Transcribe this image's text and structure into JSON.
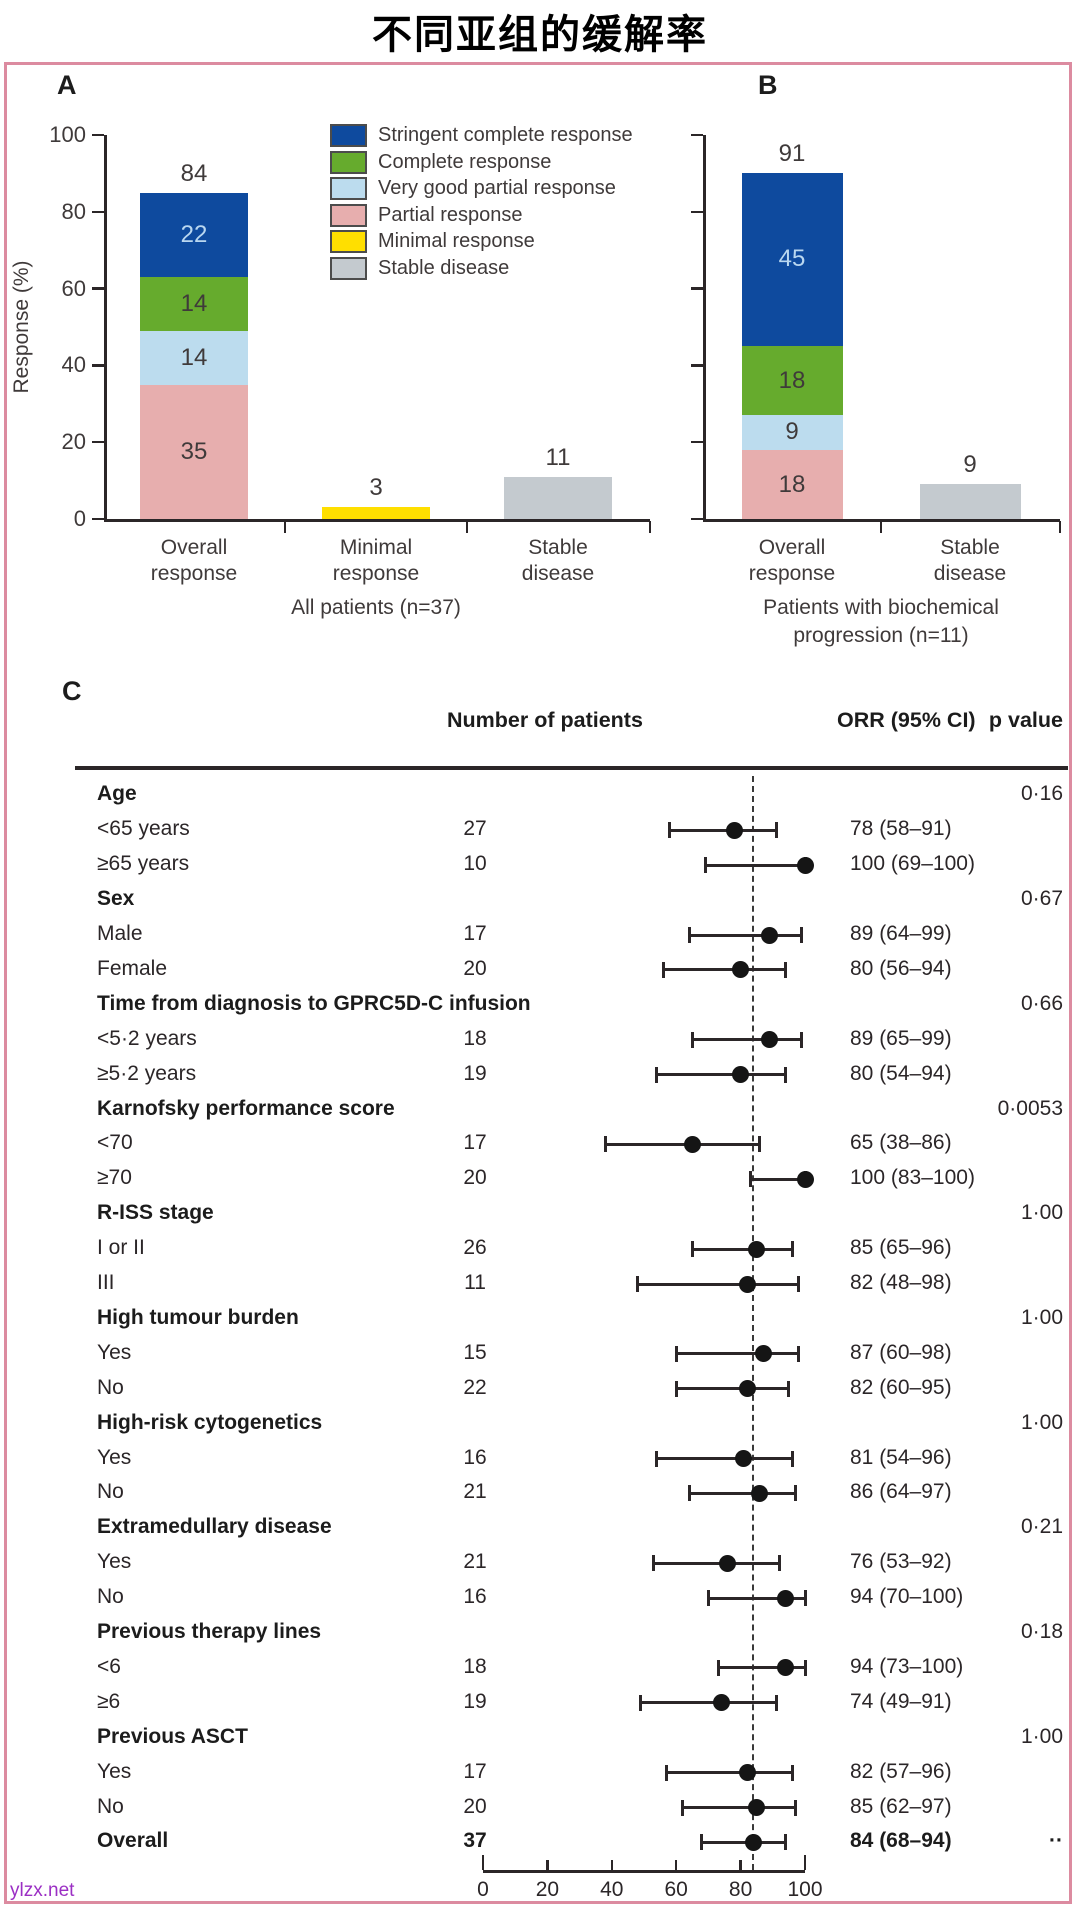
{
  "title": "不同亚组的缓解率",
  "watermark": "ylzx.net",
  "colors": {
    "stringent_complete_response": "#0e4a9e",
    "complete_response": "#66ab2d",
    "very_good_partial_response": "#bcdcee",
    "partial_response": "#e7aeae",
    "minimal_response": "#ffdf00",
    "stable_disease": "#c4cacf",
    "frame_border": "#dc8ba0",
    "light_label": "#b9d7f0",
    "dark_label": "#3f3a3a",
    "watermark_color": "#9b2fc4"
  },
  "chart_data": [
    {
      "id": "A",
      "type": "bar",
      "panel_label": "A",
      "ylabel": "Response (%)",
      "ylim": [
        0,
        100
      ],
      "yticks": [
        0,
        20,
        40,
        60,
        80,
        100
      ],
      "xlabel": "All patients (n=37)",
      "categories": [
        "Overall\nresponse",
        "Minimal\nresponse",
        "Stable\ndisease"
      ],
      "legend": [
        {
          "label": "Stringent complete response",
          "color_key": "stringent_complete_response"
        },
        {
          "label": "Complete response",
          "color_key": "complete_response"
        },
        {
          "label": "Very good partial response",
          "color_key": "very_good_partial_response"
        },
        {
          "label": "Partial response",
          "color_key": "partial_response"
        },
        {
          "label": "Minimal response",
          "color_key": "minimal_response"
        },
        {
          "label": "Stable disease",
          "color_key": "stable_disease"
        }
      ],
      "bars": [
        {
          "category": "Overall response",
          "total_label": "84",
          "segments": [
            {
              "value": 35,
              "label": "35",
              "color_key": "partial_response"
            },
            {
              "value": 14,
              "label": "14",
              "color_key": "very_good_partial_response"
            },
            {
              "value": 14,
              "label": "14",
              "color_key": "complete_response"
            },
            {
              "value": 22,
              "label": "22",
              "color_key": "stringent_complete_response",
              "light": true
            }
          ]
        },
        {
          "category": "Minimal response",
          "total_label": "3",
          "segments": [
            {
              "value": 3,
              "color_key": "minimal_response"
            }
          ]
        },
        {
          "category": "Stable disease",
          "total_label": "11",
          "segments": [
            {
              "value": 11,
              "color_key": "stable_disease"
            }
          ]
        }
      ]
    },
    {
      "id": "B",
      "type": "bar",
      "panel_label": "B",
      "ylim": [
        0,
        100
      ],
      "yticks": [
        0,
        20,
        40,
        60,
        80,
        100
      ],
      "xlabel": "Patients with biochemical\nprogression (n=11)",
      "categories": [
        "Overall\nresponse",
        "Stable\ndisease"
      ],
      "bars": [
        {
          "category": "Overall response",
          "total_label": "91",
          "segments": [
            {
              "value": 18,
              "label": "18",
              "color_key": "partial_response"
            },
            {
              "value": 9,
              "label": "9",
              "color_key": "very_good_partial_response"
            },
            {
              "value": 18,
              "label": "18",
              "color_key": "complete_response"
            },
            {
              "value": 45,
              "label": "45",
              "color_key": "stringent_complete_response",
              "light": true
            }
          ]
        },
        {
          "category": "Stable disease",
          "total_label": "9",
          "segments": [
            {
              "value": 9,
              "color_key": "stable_disease"
            }
          ]
        }
      ]
    },
    {
      "id": "C",
      "type": "forest",
      "panel_label": "C",
      "columns": {
        "n": "Number of patients",
        "orr": "ORR (95% CI)",
        "p": "p value"
      },
      "axis": {
        "min": 0,
        "max": 100,
        "ticks": [
          0,
          20,
          40,
          60,
          80,
          100
        ],
        "reference_line": 84
      },
      "rows": [
        {
          "type": "group",
          "label": "Age",
          "p": "0·16"
        },
        {
          "type": "item",
          "label": "<65 years",
          "n": "27",
          "est": 78,
          "lo": 58,
          "hi": 91,
          "orr": "78 (58–91)"
        },
        {
          "type": "item",
          "label": "≥65 years",
          "n": "10",
          "est": 100,
          "lo": 69,
          "hi": 100,
          "orr": "100 (69–100)"
        },
        {
          "type": "group",
          "label": "Sex",
          "p": "0·67"
        },
        {
          "type": "item",
          "label": "Male",
          "n": "17",
          "est": 89,
          "lo": 64,
          "hi": 99,
          "orr": "89 (64–99)"
        },
        {
          "type": "item",
          "label": "Female",
          "n": "20",
          "est": 80,
          "lo": 56,
          "hi": 94,
          "orr": "80 (56–94)"
        },
        {
          "type": "group",
          "label": "Time from diagnosis to GPRC5D-C infusion",
          "p": "0·66"
        },
        {
          "type": "item",
          "label": "<5·2 years",
          "n": "18",
          "est": 89,
          "lo": 65,
          "hi": 99,
          "orr": "89 (65–99)"
        },
        {
          "type": "item",
          "label": "≥5·2 years",
          "n": "19",
          "est": 80,
          "lo": 54,
          "hi": 94,
          "orr": "80 (54–94)"
        },
        {
          "type": "group",
          "label": "Karnofsky performance score",
          "p": "0·0053"
        },
        {
          "type": "item",
          "label": "<70",
          "n": "17",
          "est": 65,
          "lo": 38,
          "hi": 86,
          "orr": "65 (38–86)"
        },
        {
          "type": "item",
          "label": "≥70",
          "n": "20",
          "est": 100,
          "lo": 83,
          "hi": 100,
          "orr": "100 (83–100)"
        },
        {
          "type": "group",
          "label": "R-ISS stage",
          "p": "1·00"
        },
        {
          "type": "item",
          "label": "I or II",
          "n": "26",
          "est": 85,
          "lo": 65,
          "hi": 96,
          "orr": "85 (65–96)"
        },
        {
          "type": "item",
          "label": "III",
          "n": "11",
          "est": 82,
          "lo": 48,
          "hi": 98,
          "orr": "82 (48–98)"
        },
        {
          "type": "group",
          "label": "High tumour burden",
          "p": "1·00"
        },
        {
          "type": "item",
          "label": "Yes",
          "n": "15",
          "est": 87,
          "lo": 60,
          "hi": 98,
          "orr": "87 (60–98)"
        },
        {
          "type": "item",
          "label": "No",
          "n": "22",
          "est": 82,
          "lo": 60,
          "hi": 95,
          "orr": "82 (60–95)"
        },
        {
          "type": "group",
          "label": "High-risk cytogenetics",
          "p": "1·00"
        },
        {
          "type": "item",
          "label": "Yes",
          "n": "16",
          "est": 81,
          "lo": 54,
          "hi": 96,
          "orr": "81 (54–96)"
        },
        {
          "type": "item",
          "label": "No",
          "n": "21",
          "est": 86,
          "lo": 64,
          "hi": 97,
          "orr": "86 (64–97)"
        },
        {
          "type": "group",
          "label": "Extramedullary disease",
          "p": "0·21"
        },
        {
          "type": "item",
          "label": "Yes",
          "n": "21",
          "est": 76,
          "lo": 53,
          "hi": 92,
          "orr": "76 (53–92)"
        },
        {
          "type": "item",
          "label": "No",
          "n": "16",
          "est": 94,
          "lo": 70,
          "hi": 100,
          "orr": "94 (70–100)"
        },
        {
          "type": "group",
          "label": "Previous therapy lines",
          "p": "0·18"
        },
        {
          "type": "item",
          "label": "<6",
          "n": "18",
          "est": 94,
          "lo": 73,
          "hi": 100,
          "orr": "94 (73–100)"
        },
        {
          "type": "item",
          "label": "≥6",
          "n": "19",
          "est": 74,
          "lo": 49,
          "hi": 91,
          "orr": "74 (49–91)"
        },
        {
          "type": "group",
          "label": "Previous ASCT",
          "p": "1·00"
        },
        {
          "type": "item",
          "label": "Yes",
          "n": "17",
          "est": 82,
          "lo": 57,
          "hi": 96,
          "orr": "82 (57–96)"
        },
        {
          "type": "item",
          "label": "No",
          "n": "20",
          "est": 85,
          "lo": 62,
          "hi": 97,
          "orr": "85 (62–97)"
        },
        {
          "type": "overall",
          "label": "Overall",
          "n": "37",
          "est": 84,
          "lo": 68,
          "hi": 94,
          "orr": "84 (68–94)",
          "p": "··"
        }
      ]
    }
  ]
}
